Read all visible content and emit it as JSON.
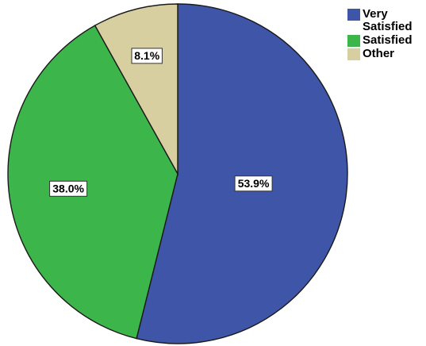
{
  "chart_data": {
    "type": "pie",
    "slices": [
      {
        "label": "Very Satisfied",
        "legend_label": "Very\nSatisfied",
        "value": 53.9,
        "data_label": "53.9%",
        "color": "#3f56a8"
      },
      {
        "label": "Satisfied",
        "legend_label": "Satisfied",
        "value": 38.0,
        "data_label": "38.0%",
        "color": "#3cb54a"
      },
      {
        "label": "Other",
        "legend_label": "Other",
        "value": 8.1,
        "data_label": "8.1%",
        "color": "#d8cfa0"
      }
    ],
    "start_angle_deg": 0,
    "direction": "clockwise",
    "legend_position": "top-right",
    "title": ""
  }
}
